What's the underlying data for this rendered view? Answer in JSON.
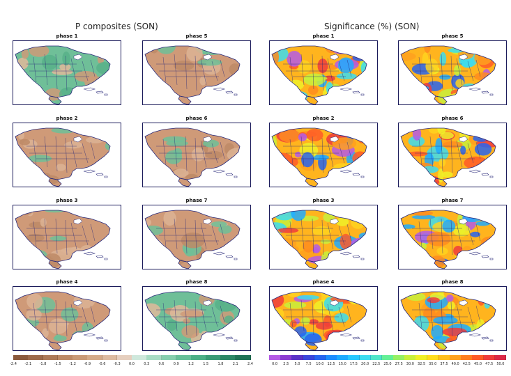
{
  "composites": {
    "title": "P composites (SON)",
    "panels": [
      {
        "label": "phase 1",
        "land": "#6fbf98"
      },
      {
        "label": "phase 5",
        "land": "#cf9a78"
      },
      {
        "label": "phase 2",
        "land": "#cf9a78"
      },
      {
        "label": "phase 6",
        "land": "#cf9a78"
      },
      {
        "label": "phase 3",
        "land": "#cf9a78"
      },
      {
        "label": "phase 7",
        "land": "#cf9a78"
      },
      {
        "label": "phase 4",
        "land": "#cf9a78"
      },
      {
        "label": "phase 8",
        "land": "#6fbf98"
      }
    ],
    "colorbar": {
      "ticks": [
        "-2.4",
        "-2.1",
        "-1.8",
        "-1.5",
        "-1.2",
        "-0.9",
        "-0.6",
        "-0.3",
        "0.0",
        "0.3",
        "0.6",
        "0.9",
        "1.2",
        "1.5",
        "1.8",
        "2.1",
        "2.4"
      ],
      "colors": [
        "#8b5a3c",
        "#9d6a4a",
        "#ad7a58",
        "#bd8a66",
        "#c99a76",
        "#d4aa88",
        "#ddbba0",
        "#e6cfbf",
        "#cfe8dc",
        "#a8dcc4",
        "#86ceae",
        "#66bf99",
        "#4caf86",
        "#3a9b75",
        "#2c8765",
        "#1f7355"
      ]
    }
  },
  "significance": {
    "title": "Significance (%) (SON)",
    "panels": [
      {
        "label": "phase 1"
      },
      {
        "label": "phase 5"
      },
      {
        "label": "phase 2"
      },
      {
        "label": "phase 6"
      },
      {
        "label": "phase 3"
      },
      {
        "label": "phase 7"
      },
      {
        "label": "phase 4"
      },
      {
        "label": "phase 8"
      }
    ],
    "colorbar": {
      "ticks": [
        "0.0",
        "2.5",
        "5.0",
        "7.5",
        "10.0",
        "12.5",
        "15.0",
        "17.5",
        "20.0",
        "22.5",
        "25.0",
        "27.5",
        "30.0",
        "32.5",
        "35.0",
        "37.5",
        "40.0",
        "42.5",
        "45.0",
        "47.5",
        "50.0"
      ],
      "colors": [
        "#b45ae6",
        "#8c3cd2",
        "#5a32c8",
        "#3c46dc",
        "#2864f0",
        "#1e8cff",
        "#1eaaff",
        "#28c8ff",
        "#3cdcf0",
        "#50e6c8",
        "#64f096",
        "#96f064",
        "#c8f03c",
        "#f0f028",
        "#ffdc1e",
        "#ffbe1e",
        "#ffa01e",
        "#ff7d1e",
        "#ff5a28",
        "#f03c3c",
        "#dc2846"
      ]
    }
  }
}
